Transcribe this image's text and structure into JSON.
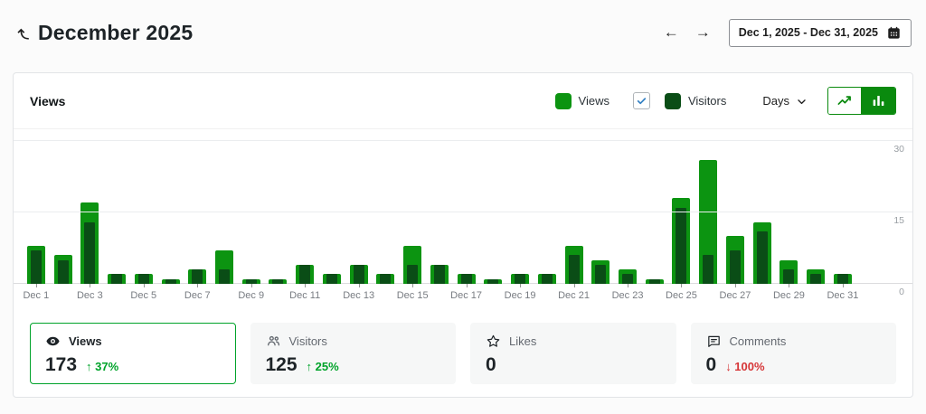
{
  "page": {
    "title": "December 2025",
    "prev_label": "←",
    "next_label": "→",
    "date_range": "Dec 1, 2025 - Dec 31, 2025"
  },
  "chart_card": {
    "title": "Views",
    "legend": {
      "views_label": "Views",
      "visitors_label": "Visitors",
      "visitors_checked": true
    },
    "interval_label": "Days"
  },
  "chart_data": {
    "type": "bar",
    "title": "Views",
    "categories": [
      "Dec 1",
      "Dec 2",
      "Dec 3",
      "Dec 4",
      "Dec 5",
      "Dec 6",
      "Dec 7",
      "Dec 8",
      "Dec 9",
      "Dec 10",
      "Dec 11",
      "Dec 12",
      "Dec 13",
      "Dec 14",
      "Dec 15",
      "Dec 16",
      "Dec 17",
      "Dec 18",
      "Dec 19",
      "Dec 20",
      "Dec 21",
      "Dec 22",
      "Dec 23",
      "Dec 24",
      "Dec 25",
      "Dec 26",
      "Dec 27",
      "Dec 28",
      "Dec 29",
      "Dec 30",
      "Dec 31"
    ],
    "series": [
      {
        "name": "Views",
        "color": "#0c9411",
        "values": [
          8,
          6,
          17,
          2,
          2,
          1,
          3,
          7,
          1,
          1,
          4,
          2,
          4,
          2,
          8,
          4,
          2,
          1,
          2,
          2,
          8,
          5,
          3,
          1,
          18,
          26,
          10,
          13,
          5,
          3,
          2
        ]
      },
      {
        "name": "Visitors",
        "color": "#0a4d16",
        "values": [
          7,
          5,
          13,
          2,
          2,
          1,
          3,
          3,
          1,
          1,
          4,
          2,
          4,
          2,
          4,
          4,
          2,
          1,
          2,
          2,
          6,
          4,
          2,
          1,
          16,
          6,
          7,
          11,
          3,
          2,
          2
        ]
      }
    ],
    "xlabel": "",
    "ylabel": "",
    "ylim": [
      0,
      32
    ],
    "yticks": [
      0,
      15,
      30
    ],
    "x_label_every": 2,
    "grid": true,
    "legend_position": "top-right"
  },
  "summary_cards": [
    {
      "label": "Views",
      "icon": "eye-icon",
      "value": "173",
      "trend": {
        "direction": "up",
        "text": "37%"
      },
      "selected": true
    },
    {
      "label": "Visitors",
      "icon": "people-icon",
      "value": "125",
      "trend": {
        "direction": "up",
        "text": "25%"
      },
      "selected": false
    },
    {
      "label": "Likes",
      "icon": "star-icon",
      "value": "0",
      "trend": null,
      "selected": false
    },
    {
      "label": "Comments",
      "icon": "comment-icon",
      "value": "0",
      "trend": {
        "direction": "down",
        "text": "100%"
      },
      "selected": false
    }
  ],
  "colors": {
    "views_green": "#0c9411",
    "visitors_green": "#0a4d16",
    "accent_green": "#0a8a0e",
    "positive": "#00a32a",
    "negative": "#d63638",
    "checkbox_check": "#3582c4"
  }
}
